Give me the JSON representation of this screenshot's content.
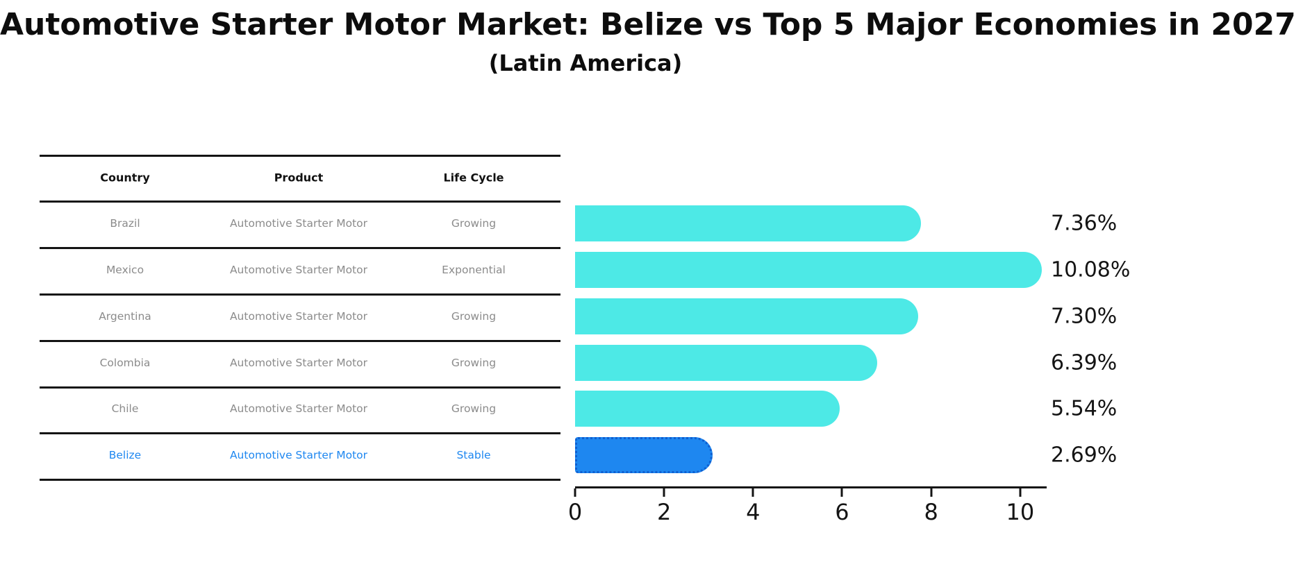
{
  "title": "Automotive Starter Motor Market: Belize vs Top 5 Major Economies in 2027",
  "subtitle": "(Latin America)",
  "table": {
    "headers": [
      "Country",
      "Product",
      "Life Cycle"
    ],
    "rows": [
      {
        "country": "Brazil",
        "product": "Automotive Starter Motor",
        "life_cycle": "Growing",
        "highlight": false
      },
      {
        "country": "Mexico",
        "product": "Automotive Starter Motor",
        "life_cycle": "Exponential",
        "highlight": false
      },
      {
        "country": "Argentina",
        "product": "Automotive Starter Motor",
        "life_cycle": "Growing",
        "highlight": false
      },
      {
        "country": "Colombia",
        "product": "Automotive Starter Motor",
        "life_cycle": "Growing",
        "highlight": false
      },
      {
        "country": "Chile",
        "product": "Automotive Starter Motor",
        "life_cycle": "Growing",
        "highlight": false
      },
      {
        "country": "Belize",
        "product": "Automotive Starter Motor",
        "life_cycle": "Stable",
        "highlight": true
      }
    ]
  },
  "chart_data": {
    "type": "bar",
    "orientation": "horizontal",
    "title": "Automotive Starter Motor Market: Belize vs Top 5 Major Economies in 2027",
    "subtitle": "(Latin America)",
    "categories": [
      "Brazil",
      "Mexico",
      "Argentina",
      "Colombia",
      "Chile",
      "Belize"
    ],
    "values": [
      7.36,
      10.08,
      7.3,
      6.39,
      5.54,
      2.69
    ],
    "labels": [
      "7.36%",
      "10.08%",
      "7.30%",
      "6.39%",
      "5.54%",
      "2.69%"
    ],
    "x_ticks": [
      0,
      2,
      4,
      6,
      8,
      10
    ],
    "xlim": [
      0,
      10.58
    ],
    "xlabel": "",
    "ylabel": "",
    "grid": false,
    "legend": false,
    "bar_color": "#4DE9E6",
    "highlight_color": "#1E87F0",
    "highlight_index": 5
  }
}
